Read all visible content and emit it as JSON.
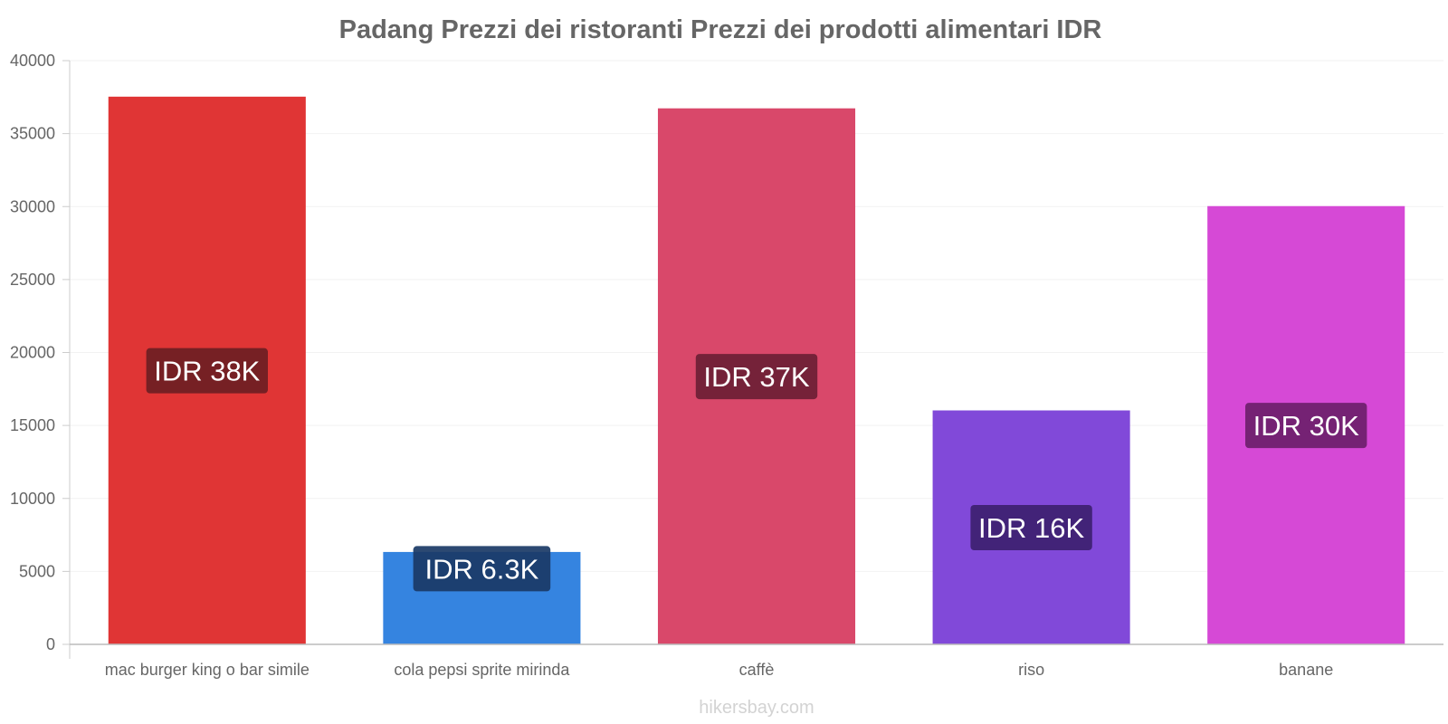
{
  "chart_data": {
    "type": "bar",
    "title": "Padang Prezzi dei ristoranti Prezzi dei prodotti alimentari IDR",
    "xlabel": "",
    "ylabel": "",
    "ylim": [
      0,
      40000
    ],
    "yticks": [
      0,
      5000,
      10000,
      15000,
      20000,
      25000,
      30000,
      35000,
      40000
    ],
    "grid": true,
    "categories": [
      "mac burger king o bar simile",
      "cola pepsi sprite mirinda",
      "caffè",
      "riso",
      "banane"
    ],
    "values": [
      37500,
      6300,
      36700,
      16000,
      30000
    ],
    "data_labels": [
      "IDR 38K",
      "IDR 6.3K",
      "IDR 37K",
      "IDR 16K",
      "IDR 30K"
    ],
    "bar_colors": [
      "#e03535",
      "#3584e0",
      "#d9486a",
      "#8149d9",
      "#d649d6"
    ],
    "label_colors": [
      "#6d1e23",
      "#1a3a66",
      "#6d2035",
      "#3d2170",
      "#6c206b"
    ]
  },
  "watermark": "hikersbay.com"
}
